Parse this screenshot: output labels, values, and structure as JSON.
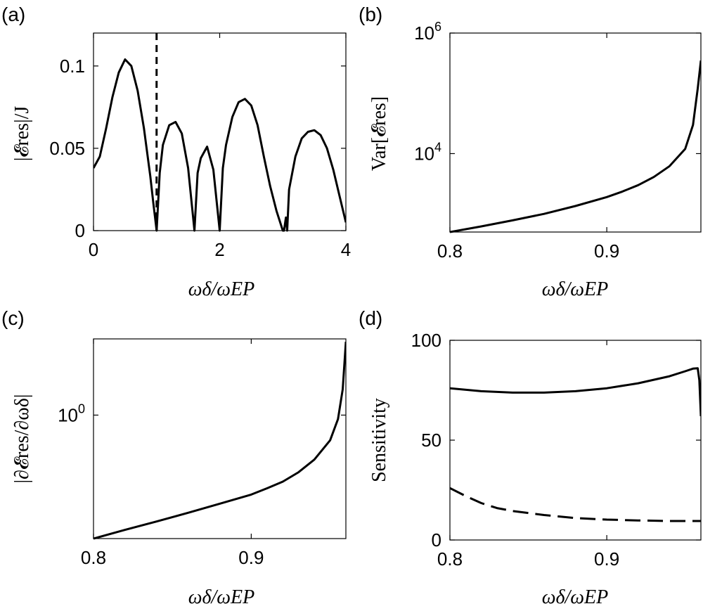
{
  "chart_data": [
    {
      "id": "a",
      "panel_label": "(a)",
      "type": "line",
      "xlabel": "ωδ/ωEP",
      "ylabel": "|𝓔res|/J",
      "xlim": [
        0,
        4
      ],
      "ylim": [
        0,
        0.12
      ],
      "yscale": "linear",
      "xticks": [
        {
          "v": 0,
          "t": "0"
        },
        {
          "v": 2,
          "t": "2"
        },
        {
          "v": 4,
          "t": "4"
        }
      ],
      "yticks": [
        {
          "v": 0,
          "t": "0"
        },
        {
          "v": 0.05,
          "t": "0.05"
        },
        {
          "v": 0.1,
          "t": "0.1"
        }
      ],
      "vertical_line": {
        "x": 1.0,
        "style": "dashed"
      },
      "series": [
        {
          "style": "solid",
          "x": [
            0,
            0.1,
            0.2,
            0.3,
            0.4,
            0.5,
            0.6,
            0.7,
            0.8,
            0.9,
            0.95,
            1.0,
            1.05,
            1.1,
            1.2,
            1.3,
            1.4,
            1.5,
            1.6,
            1.65,
            1.7,
            1.8,
            1.9,
            2.0,
            2.05,
            2.1,
            2.2,
            2.3,
            2.4,
            2.5,
            2.6,
            2.7,
            2.8,
            2.9,
            3.0,
            3.02,
            3.05,
            3.07,
            3.1,
            3.2,
            3.3,
            3.4,
            3.5,
            3.6,
            3.7,
            3.8,
            3.9,
            4.0
          ],
          "y": [
            0.038,
            0.045,
            0.062,
            0.081,
            0.096,
            0.104,
            0.1,
            0.085,
            0.062,
            0.033,
            0.016,
            0.0,
            0.035,
            0.052,
            0.064,
            0.066,
            0.059,
            0.038,
            0.0,
            0.035,
            0.044,
            0.051,
            0.037,
            0.0,
            0.038,
            0.052,
            0.069,
            0.078,
            0.08,
            0.076,
            0.064,
            0.045,
            0.027,
            0.012,
            0.0,
            0.0,
            0.008,
            0.0,
            0.025,
            0.045,
            0.056,
            0.06,
            0.061,
            0.058,
            0.05,
            0.037,
            0.021,
            0.005
          ]
        }
      ]
    },
    {
      "id": "b",
      "panel_label": "(b)",
      "type": "line",
      "xlabel": "ωδ/ωEP",
      "ylabel": "Var[𝓔res]",
      "xlim": [
        0.8,
        0.96
      ],
      "ylim": [
        500,
        1000000
      ],
      "yscale": "log",
      "xticks": [
        {
          "v": 0.8,
          "t": "0.8"
        },
        {
          "v": 0.9,
          "t": "0.9"
        }
      ],
      "yticks": [
        {
          "v": 10000,
          "t": "10^4"
        },
        {
          "v": 1000000,
          "t": "10^6"
        }
      ],
      "series": [
        {
          "style": "solid",
          "x": [
            0.8,
            0.82,
            0.84,
            0.86,
            0.88,
            0.9,
            0.91,
            0.92,
            0.93,
            0.94,
            0.95,
            0.955,
            0.958,
            0.96
          ],
          "y": [
            500,
            620,
            780,
            1000,
            1350,
            1900,
            2350,
            3000,
            4100,
            6200,
            12000,
            30000,
            120000,
            350000
          ]
        }
      ]
    },
    {
      "id": "c",
      "panel_label": "(c)",
      "type": "line",
      "xlabel": "ωδ/ωEP",
      "ylabel": "|∂𝓔res/∂ωδ|",
      "xlim": [
        0.8,
        0.96
      ],
      "ylim": [
        0.2,
        2.7
      ],
      "yscale": "log",
      "xticks": [
        {
          "v": 0.8,
          "t": "0.8"
        },
        {
          "v": 0.9,
          "t": "0.9"
        }
      ],
      "yticks": [
        {
          "v": 1,
          "t": "10^0"
        }
      ],
      "series": [
        {
          "style": "solid",
          "x": [
            0.8,
            0.82,
            0.84,
            0.86,
            0.88,
            0.9,
            0.91,
            0.92,
            0.93,
            0.94,
            0.95,
            0.955,
            0.958,
            0.96
          ],
          "y": [
            0.2,
            0.224,
            0.25,
            0.28,
            0.315,
            0.355,
            0.385,
            0.42,
            0.475,
            0.56,
            0.72,
            0.95,
            1.4,
            2.6
          ]
        }
      ]
    },
    {
      "id": "d",
      "panel_label": "(d)",
      "type": "line",
      "xlabel": "ωδ/ωEP",
      "ylabel": "Sensitivity",
      "xlim": [
        0.8,
        0.96
      ],
      "ylim": [
        0,
        100
      ],
      "yscale": "linear",
      "xticks": [
        {
          "v": 0.8,
          "t": "0.8"
        },
        {
          "v": 0.9,
          "t": "0.9"
        }
      ],
      "yticks": [
        {
          "v": 0,
          "t": "0"
        },
        {
          "v": 50,
          "t": "50"
        },
        {
          "v": 100,
          "t": "100"
        }
      ],
      "series": [
        {
          "style": "solid",
          "x": [
            0.8,
            0.82,
            0.84,
            0.86,
            0.88,
            0.9,
            0.92,
            0.94,
            0.95,
            0.955,
            0.958,
            0.959,
            0.96
          ],
          "y": [
            76,
            74.5,
            73.8,
            73.8,
            74.5,
            76,
            78.5,
            82,
            84.5,
            85.8,
            86,
            80,
            62
          ]
        },
        {
          "style": "dashed",
          "x": [
            0.8,
            0.81,
            0.82,
            0.83,
            0.84,
            0.86,
            0.88,
            0.9,
            0.92,
            0.94,
            0.96
          ],
          "y": [
            26,
            22,
            18.5,
            16,
            14.5,
            12.5,
            11,
            10.2,
            9.8,
            9.5,
            9.5
          ]
        }
      ]
    }
  ]
}
